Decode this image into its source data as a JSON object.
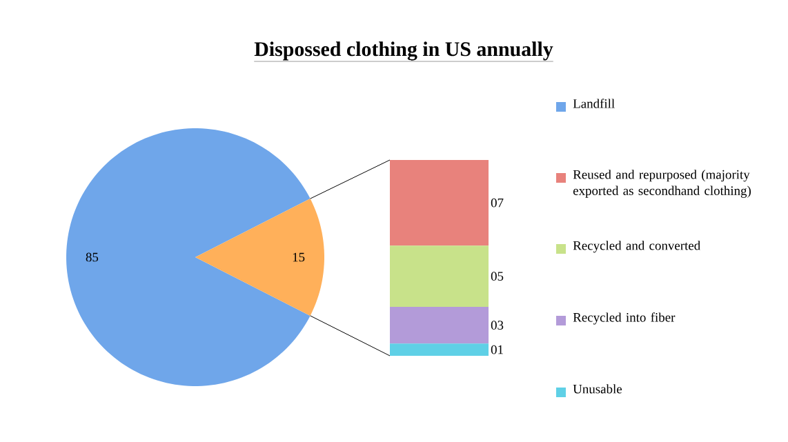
{
  "chart_data": [
    {
      "type": "pie",
      "title": "Dispossed clothing in US annually",
      "categories": [
        "Landfill",
        null
      ],
      "values": [
        85,
        15
      ],
      "colors": [
        "#6fa6ea",
        "#ffb05a"
      ],
      "data_labels": true,
      "legend": "right"
    },
    {
      "type": "bar",
      "stacked": true,
      "categories": [
        null
      ],
      "legend": "right",
      "series": [
        {
          "name": "Unusable",
          "color": "#5fd0e6",
          "values": [
            1
          ],
          "value_labels": [
            "01"
          ]
        },
        {
          "name": "Recycled into fiber",
          "color": "#b39bd9",
          "values": [
            3
          ],
          "value_labels": [
            "03"
          ]
        },
        {
          "name": "Recycled and converted",
          "color": "#c8e28a",
          "values": [
            5
          ],
          "value_labels": [
            "05"
          ]
        },
        {
          "name": "Reused and repurposed (majority exported as secondhand clothing)",
          "color": "#e8827c",
          "values": [
            7
          ],
          "value_labels": [
            "07"
          ]
        }
      ]
    }
  ]
}
